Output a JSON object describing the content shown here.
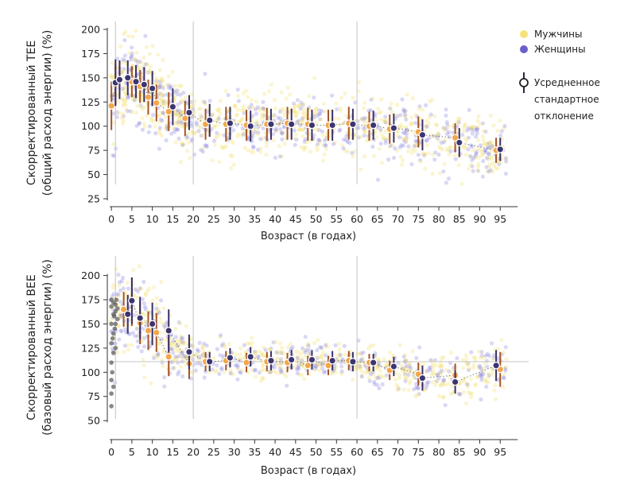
{
  "colors": {
    "men": "#f3d24a",
    "women": "#6a5fc9",
    "men_marker": "#f2a74a",
    "women_marker": "#3c3570",
    "err_men": "#a4542a",
    "err_women": "#3a2f66",
    "infant_dots": "#555555",
    "axis": "#333333",
    "refline": "#cccccc"
  },
  "legend": {
    "men_label": "Мужчины",
    "women_label": "Женщины",
    "mean_label_lines": [
      "Усредненное",
      "стандартное",
      "отклонение"
    ]
  },
  "chart_data": [
    {
      "type": "scatter",
      "title": "",
      "xlabel": "Возраст (в годах)",
      "ylabel_lines": [
        "Скорректированный TEE",
        "(общий расход энергии) (%)"
      ],
      "xlim": [
        -1,
        100
      ],
      "ylim": [
        25,
        200
      ],
      "xticks": [
        0,
        5,
        10,
        15,
        20,
        25,
        30,
        35,
        40,
        45,
        50,
        55,
        60,
        65,
        70,
        75,
        80,
        85,
        90,
        95
      ],
      "yticks": [
        25,
        50,
        75,
        100,
        125,
        150,
        175,
        200
      ],
      "vlines": [
        1,
        20,
        60
      ],
      "hline": null,
      "trend": [
        [
          0,
          125
        ],
        [
          1,
          145
        ],
        [
          2,
          150
        ],
        [
          5,
          147
        ],
        [
          8,
          138
        ],
        [
          12,
          125
        ],
        [
          16,
          112
        ],
        [
          20,
          104
        ],
        [
          25,
          101
        ],
        [
          40,
          101
        ],
        [
          55,
          102
        ],
        [
          65,
          100
        ],
        [
          75,
          93
        ],
        [
          85,
          85
        ],
        [
          95,
          74
        ]
      ],
      "spread": [
        [
          0,
          30
        ],
        [
          5,
          22
        ],
        [
          15,
          20
        ],
        [
          20,
          17
        ],
        [
          40,
          16
        ],
        [
          60,
          17
        ],
        [
          75,
          16
        ],
        [
          95,
          14
        ]
      ],
      "series": [
        {
          "name": "Мужчины",
          "points": [
            {
              "x": 0,
              "mean": 121,
              "sd": 25
            },
            {
              "x": 1,
              "mean": 143,
              "sd": 22
            },
            {
              "x": 2,
              "mean": 149,
              "sd": 18
            },
            {
              "x": 5,
              "mean": 146,
              "sd": 16
            },
            {
              "x": 7,
              "mean": 141,
              "sd": 17
            },
            {
              "x": 9,
              "mean": 130,
              "sd": 18
            },
            {
              "x": 11,
              "mean": 124,
              "sd": 19
            },
            {
              "x": 14,
              "mean": 115,
              "sd": 20
            },
            {
              "x": 18,
              "mean": 108,
              "sd": 18
            },
            {
              "x": 23,
              "mean": 102,
              "sd": 16
            },
            {
              "x": 28,
              "mean": 102,
              "sd": 18
            },
            {
              "x": 33,
              "mean": 101,
              "sd": 16
            },
            {
              "x": 38,
              "mean": 102,
              "sd": 17
            },
            {
              "x": 43,
              "mean": 103,
              "sd": 17
            },
            {
              "x": 48,
              "mean": 102,
              "sd": 17
            },
            {
              "x": 53,
              "mean": 101,
              "sd": 16
            },
            {
              "x": 58,
              "mean": 103,
              "sd": 17
            },
            {
              "x": 63,
              "mean": 100,
              "sd": 15
            },
            {
              "x": 68,
              "mean": 97,
              "sd": 15
            },
            {
              "x": 75,
              "mean": 94,
              "sd": 16
            },
            {
              "x": 84,
              "mean": 88,
              "sd": 15
            },
            {
              "x": 94,
              "mean": 75,
              "sd": 13
            }
          ]
        },
        {
          "name": "Женщины",
          "points": [
            {
              "x": 1,
              "mean": 145,
              "sd": 24
            },
            {
              "x": 2,
              "mean": 148,
              "sd": 20
            },
            {
              "x": 4,
              "mean": 150,
              "sd": 18
            },
            {
              "x": 6,
              "mean": 146,
              "sd": 17
            },
            {
              "x": 8,
              "mean": 143,
              "sd": 18
            },
            {
              "x": 10,
              "mean": 139,
              "sd": 18
            },
            {
              "x": 15,
              "mean": 120,
              "sd": 19
            },
            {
              "x": 19,
              "mean": 114,
              "sd": 18
            },
            {
              "x": 24,
              "mean": 106,
              "sd": 17
            },
            {
              "x": 29,
              "mean": 103,
              "sd": 17
            },
            {
              "x": 34,
              "mean": 100,
              "sd": 16
            },
            {
              "x": 39,
              "mean": 102,
              "sd": 16
            },
            {
              "x": 44,
              "mean": 102,
              "sd": 16
            },
            {
              "x": 49,
              "mean": 101,
              "sd": 16
            },
            {
              "x": 54,
              "mean": 101,
              "sd": 16
            },
            {
              "x": 59,
              "mean": 102,
              "sd": 16
            },
            {
              "x": 64,
              "mean": 101,
              "sd": 15
            },
            {
              "x": 69,
              "mean": 98,
              "sd": 15
            },
            {
              "x": 76,
              "mean": 91,
              "sd": 16
            },
            {
              "x": 85,
              "mean": 83,
              "sd": 15
            },
            {
              "x": 95,
              "mean": 76,
              "sd": 12
            }
          ]
        }
      ]
    },
    {
      "type": "scatter",
      "title": "",
      "xlabel": "Возраст (в годах)",
      "ylabel_lines": [
        "Скорректированный  BEE",
        "(базовый расход энергии) (%)"
      ],
      "xlim": [
        -1,
        100
      ],
      "ylim": [
        37,
        212
      ],
      "xticks": [
        0,
        5,
        10,
        15,
        20,
        25,
        30,
        35,
        40,
        45,
        50,
        55,
        60,
        65,
        70,
        75,
        80,
        85,
        90,
        95
      ],
      "yticks": [
        50,
        75,
        100,
        125,
        150,
        175,
        200
      ],
      "vlines": [
        1,
        20,
        60
      ],
      "hline": 111,
      "trend": [
        [
          1,
          165
        ],
        [
          4,
          168
        ],
        [
          6,
          158
        ],
        [
          10,
          145
        ],
        [
          15,
          128
        ],
        [
          20,
          113
        ],
        [
          30,
          111
        ],
        [
          50,
          111
        ],
        [
          62,
          109
        ],
        [
          70,
          104
        ],
        [
          75,
          98
        ],
        [
          85,
          94
        ],
        [
          95,
          107
        ]
      ],
      "spread": [
        [
          1,
          25
        ],
        [
          5,
          22
        ],
        [
          12,
          20
        ],
        [
          20,
          10
        ],
        [
          40,
          9
        ],
        [
          60,
          9
        ],
        [
          75,
          12
        ],
        [
          95,
          14
        ]
      ],
      "infants": [
        {
          "x": 0,
          "y": 65
        },
        {
          "x": 0,
          "y": 78
        },
        {
          "x": 0,
          "y": 92
        },
        {
          "x": 0,
          "y": 110
        },
        {
          "x": 0,
          "y": 130
        },
        {
          "x": 0,
          "y": 150
        },
        {
          "x": 0,
          "y": 168
        },
        {
          "x": 0,
          "y": 175
        },
        {
          "x": 0.5,
          "y": 85
        },
        {
          "x": 0.5,
          "y": 120
        },
        {
          "x": 0.5,
          "y": 140
        },
        {
          "x": 0.5,
          "y": 160
        },
        {
          "x": 0.5,
          "y": 172
        },
        {
          "x": 1,
          "y": 125
        },
        {
          "x": 1,
          "y": 150
        },
        {
          "x": 1,
          "y": 163
        },
        {
          "x": 1,
          "y": 170
        },
        {
          "x": 1.5,
          "y": 155
        },
        {
          "x": 1.5,
          "y": 166
        },
        {
          "x": 0.2,
          "y": 100
        },
        {
          "x": 0.8,
          "y": 145
        },
        {
          "x": 1.2,
          "y": 175
        },
        {
          "x": 0.3,
          "y": 135
        },
        {
          "x": 0.7,
          "y": 158
        }
      ],
      "series": [
        {
          "name": "Мужчины",
          "points": [
            {
              "x": 3,
              "mean": 165,
              "sd": 18
            },
            {
              "x": 5,
              "mean": 173,
              "sd": 25
            },
            {
              "x": 7,
              "mean": 151,
              "sd": 22
            },
            {
              "x": 9,
              "mean": 143,
              "sd": 20
            },
            {
              "x": 11,
              "mean": 141,
              "sd": 20
            },
            {
              "x": 14,
              "mean": 116,
              "sd": 20
            },
            {
              "x": 19,
              "mean": 109,
              "sd": 16
            },
            {
              "x": 23,
              "mean": 111,
              "sd": 10
            },
            {
              "x": 28,
              "mean": 112,
              "sd": 10
            },
            {
              "x": 33,
              "mean": 110,
              "sd": 10
            },
            {
              "x": 38,
              "mean": 111,
              "sd": 10
            },
            {
              "x": 43,
              "mean": 110,
              "sd": 10
            },
            {
              "x": 48,
              "mean": 107,
              "sd": 10
            },
            {
              "x": 53,
              "mean": 107,
              "sd": 10
            },
            {
              "x": 58,
              "mean": 112,
              "sd": 10
            },
            {
              "x": 63,
              "mean": 110,
              "sd": 9
            },
            {
              "x": 68,
              "mean": 102,
              "sd": 10
            },
            {
              "x": 75,
              "mean": 98,
              "sd": 12
            },
            {
              "x": 84,
              "mean": 97,
              "sd": 12
            },
            {
              "x": 95,
              "mean": 103,
              "sd": 18
            }
          ]
        },
        {
          "name": "Женщины",
          "points": [
            {
              "x": 4,
              "mean": 160,
              "sd": 20
            },
            {
              "x": 5,
              "mean": 174,
              "sd": 24
            },
            {
              "x": 7,
              "mean": 156,
              "sd": 22
            },
            {
              "x": 10,
              "mean": 150,
              "sd": 22
            },
            {
              "x": 14,
              "mean": 143,
              "sd": 22
            },
            {
              "x": 19,
              "mean": 121,
              "sd": 18
            },
            {
              "x": 24,
              "mean": 111,
              "sd": 10
            },
            {
              "x": 29,
              "mean": 115,
              "sd": 10
            },
            {
              "x": 34,
              "mean": 116,
              "sd": 10
            },
            {
              "x": 39,
              "mean": 112,
              "sd": 10
            },
            {
              "x": 44,
              "mean": 113,
              "sd": 10
            },
            {
              "x": 49,
              "mean": 113,
              "sd": 10
            },
            {
              "x": 54,
              "mean": 112,
              "sd": 10
            },
            {
              "x": 59,
              "mean": 111,
              "sd": 10
            },
            {
              "x": 64,
              "mean": 110,
              "sd": 9
            },
            {
              "x": 69,
              "mean": 106,
              "sd": 10
            },
            {
              "x": 76,
              "mean": 94,
              "sd": 13
            },
            {
              "x": 84,
              "mean": 90,
              "sd": 12
            },
            {
              "x": 94,
              "mean": 107,
              "sd": 16
            }
          ]
        }
      ]
    }
  ]
}
